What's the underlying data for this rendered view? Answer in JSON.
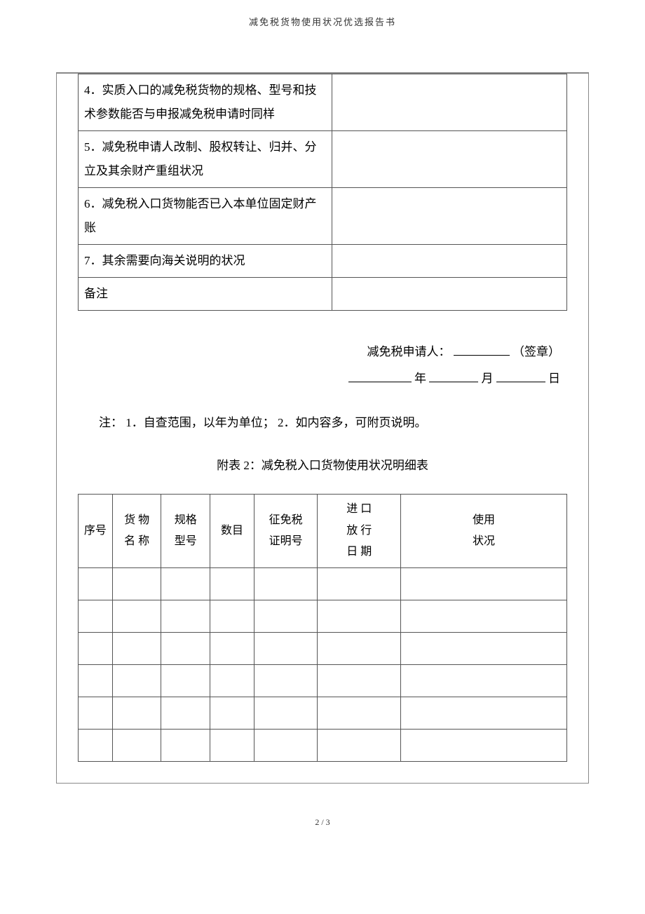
{
  "header": {
    "title": "减免税货物使用状况优选报告书"
  },
  "table1": {
    "rows": [
      {
        "label": "4．实质入口的减免税货物的规格、型号和技术参数能否与申报减免税申请时同样",
        "value": ""
      },
      {
        "label": "5．减免税申请人改制、股权转让、归并、分立及其余财产重组状况",
        "value": ""
      },
      {
        "label": "6．减免税入口货物能否已入本单位固定财产账",
        "value": ""
      },
      {
        "label": "7．其余需要向海关说明的状况",
        "value": ""
      },
      {
        "label": "备注",
        "value": ""
      }
    ]
  },
  "signature": {
    "applicant_label": "减免税申请人：",
    "seal_label": "（签章）",
    "year_label": "年",
    "month_label": "月",
    "day_label": "日"
  },
  "note": "注： 1．自查范围，以年为单位；  2．如内容多，可附页说明。",
  "subtitle": "附表 2：减免税入口货物使用状况明细表",
  "table2": {
    "headers": {
      "seq": "序号",
      "name": "货 物\n名 称",
      "spec": "规格\n型号",
      "qty": "数目",
      "cert": "征免税\n证明号",
      "date": "进 口\n放 行\n日 期",
      "use": "使用\n状况"
    },
    "body_row_count": 6
  },
  "footer": {
    "page": "2 / 3"
  }
}
